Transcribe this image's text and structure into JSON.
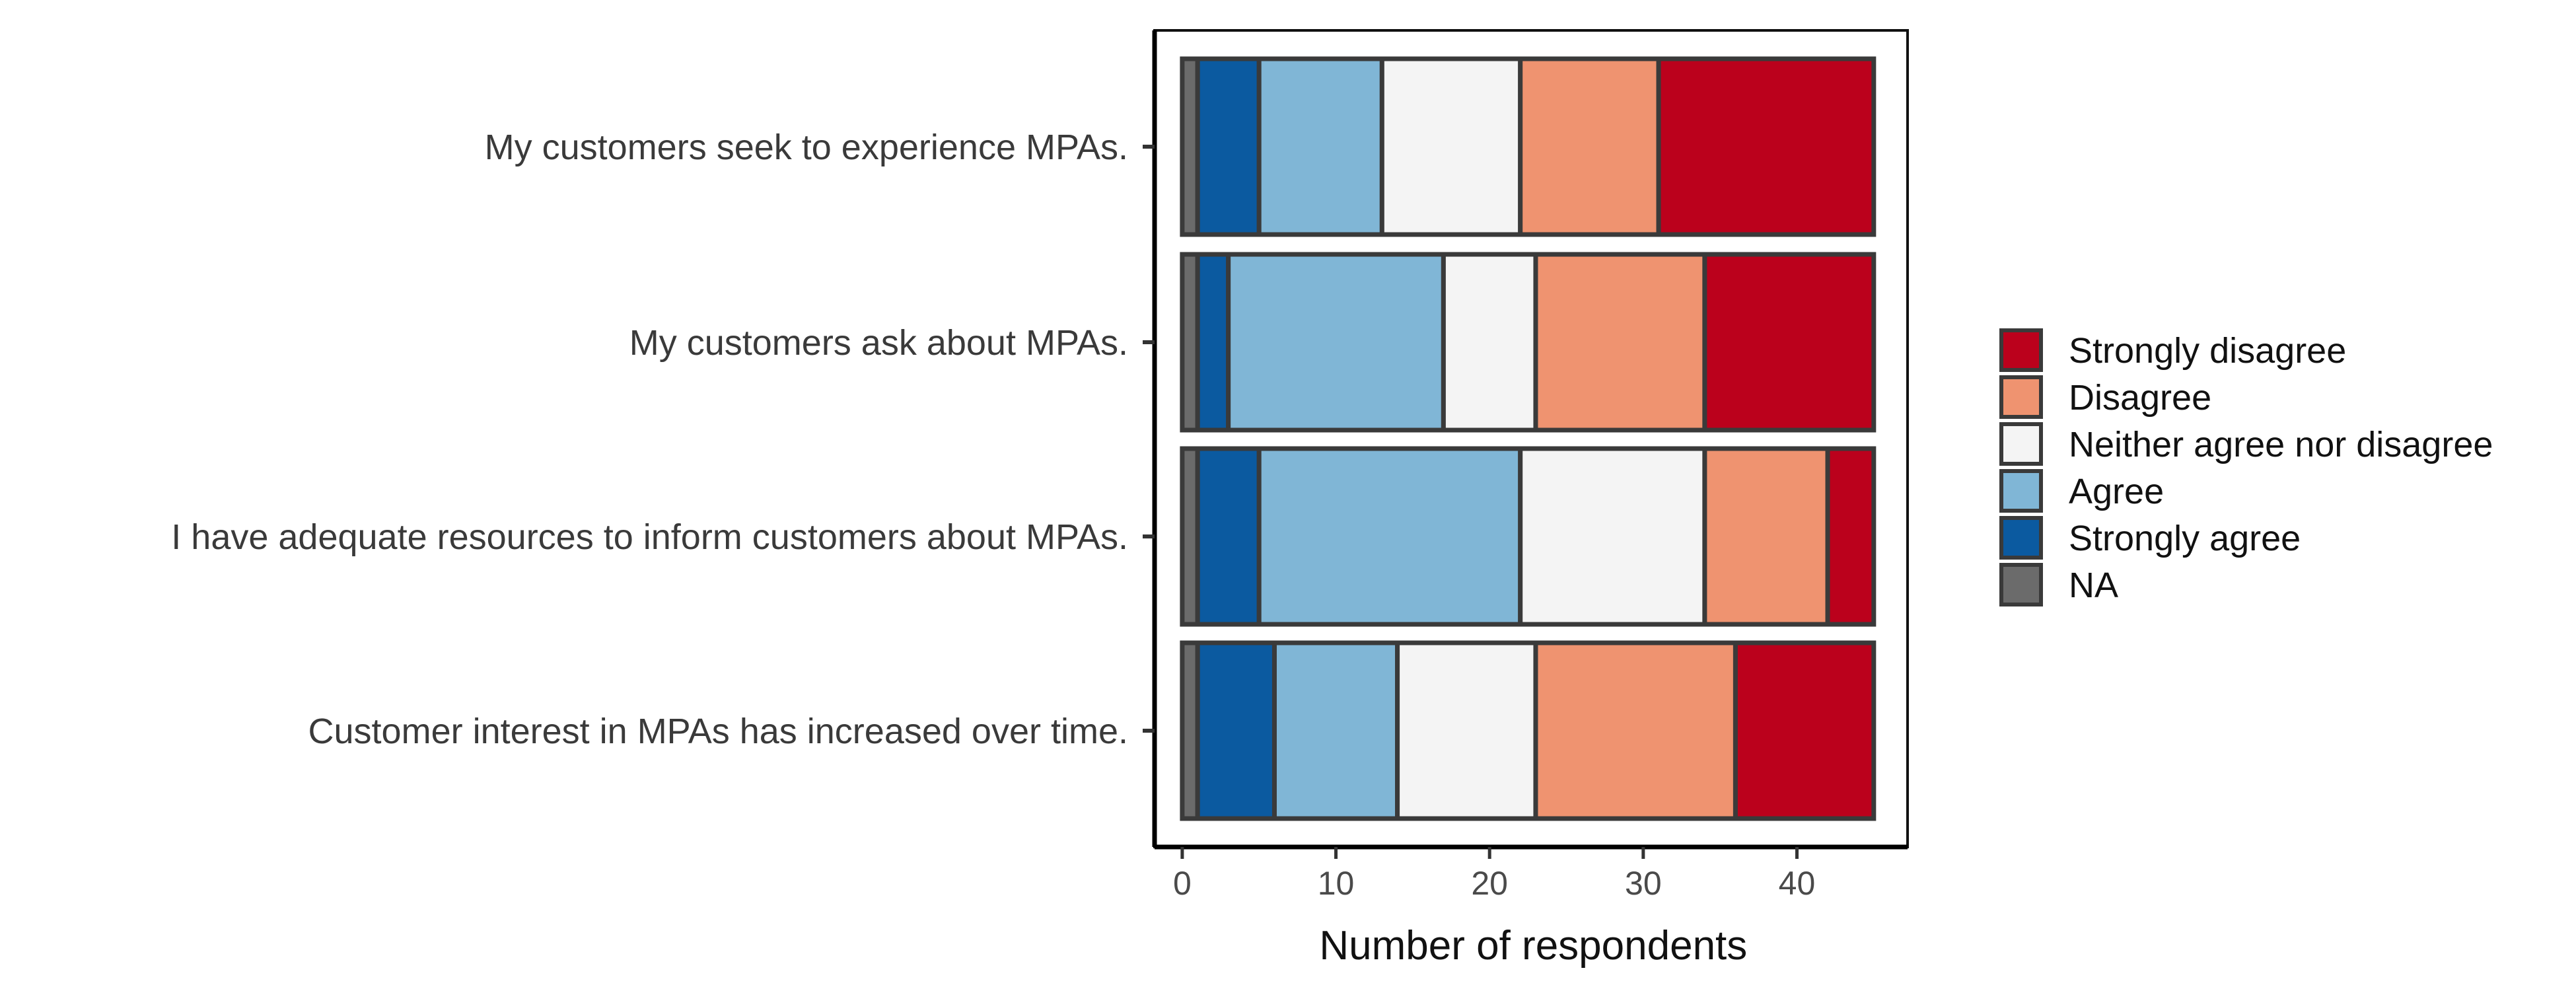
{
  "chart_data": {
    "type": "bar",
    "orientation": "horizontal",
    "stacked": true,
    "categories": [
      "My customers seek to experience MPAs.",
      "My customers ask about MPAs.",
      "I have adequate resources to inform customers about MPAs.",
      "Customer interest in MPAs has increased over time."
    ],
    "series": [
      {
        "name": "NA",
        "color": "#6b6b6b",
        "values": [
          1,
          1,
          1,
          1
        ]
      },
      {
        "name": "Strongly agree",
        "color": "#0b5aa0",
        "values": [
          4,
          2,
          4,
          5
        ]
      },
      {
        "name": "Agree",
        "color": "#80b6d6",
        "values": [
          8,
          14,
          17,
          8
        ]
      },
      {
        "name": "Neither agree nor disagree",
        "color": "#f4f4f4",
        "values": [
          9,
          6,
          12,
          9
        ]
      },
      {
        "name": "Disagree",
        "color": "#ef9370",
        "values": [
          9,
          11,
          8,
          13
        ]
      },
      {
        "name": "Strongly disagree",
        "color": "#bb011c",
        "values": [
          14,
          11,
          3,
          9
        ]
      }
    ],
    "legend_order": [
      "Strongly disagree",
      "Disagree",
      "Neither agree nor disagree",
      "Agree",
      "Strongly agree",
      "NA"
    ],
    "xlabel": "Number of respondents",
    "ylabel": "",
    "title": "",
    "xlim": [
      -1.8,
      47.2
    ],
    "xticks": [
      0,
      10,
      20,
      30,
      40
    ],
    "grid": false,
    "legend_position": "right",
    "bar_outline_color": "#3a3a3a"
  }
}
